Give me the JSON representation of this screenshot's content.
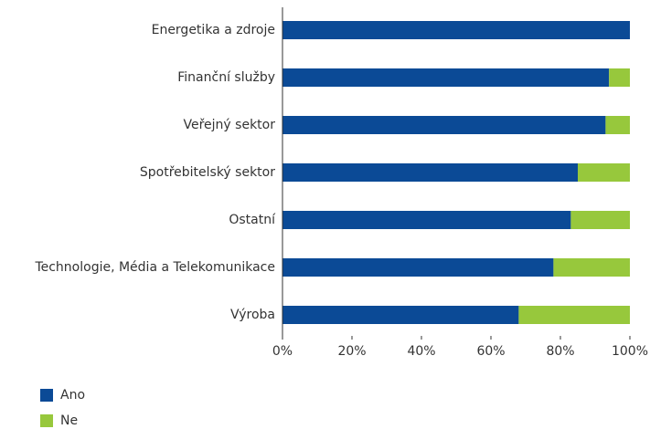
{
  "chart_data": {
    "type": "stacked_bar_horizontal",
    "categories": [
      "Energetika a zdroje",
      "Finanční služby",
      "Veřejný sektor",
      "Spotřebitelský sektor",
      "Ostatní",
      "Technologie, Média a Telekomunikace",
      "Výroba"
    ],
    "series": [
      {
        "name": "Ano",
        "color": "#0b4a96",
        "values": [
          100,
          94,
          93,
          85,
          83,
          78,
          68
        ]
      },
      {
        "name": "Ne",
        "color": "#97c83c",
        "values": [
          0,
          6,
          7,
          15,
          17,
          22,
          32
        ]
      }
    ],
    "xlim": [
      0,
      100
    ],
    "xticks": [
      {
        "value": 0,
        "label": "0%"
      },
      {
        "value": 20,
        "label": "20%"
      },
      {
        "value": 40,
        "label": "40%"
      },
      {
        "value": 60,
        "label": "60%"
      },
      {
        "value": 80,
        "label": "80%"
      },
      {
        "value": 100,
        "label": "100%"
      }
    ],
    "legend": "bottom-left"
  }
}
